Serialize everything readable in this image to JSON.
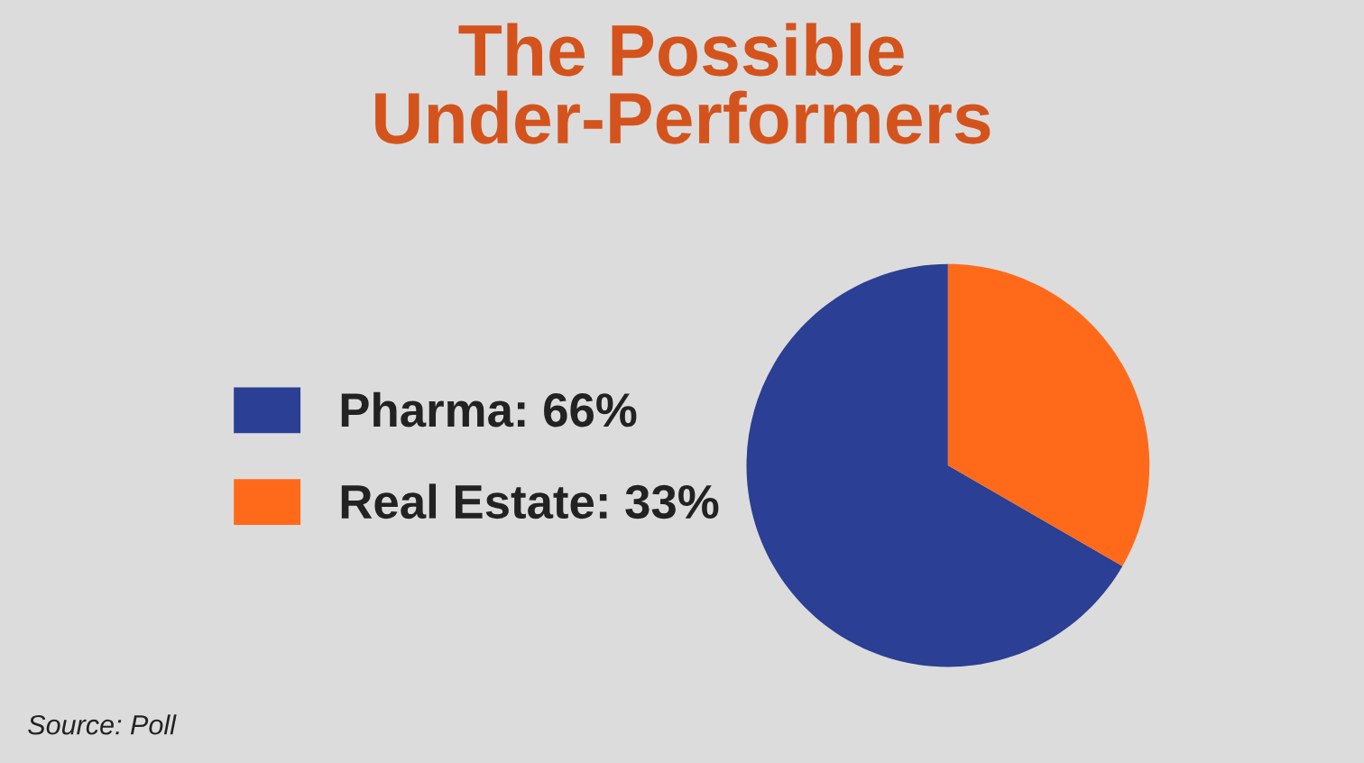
{
  "chart_data": {
    "type": "pie",
    "title": "The Possible\nUnder-Performers",
    "categories": [
      "Pharma: 66%",
      "Real Estate: 33%"
    ],
    "values": [
      66,
      33
    ],
    "colors": [
      "#2b3f94",
      "#ff6a1a"
    ],
    "legend": "left",
    "annotations": [
      "Source: Poll"
    ]
  }
}
